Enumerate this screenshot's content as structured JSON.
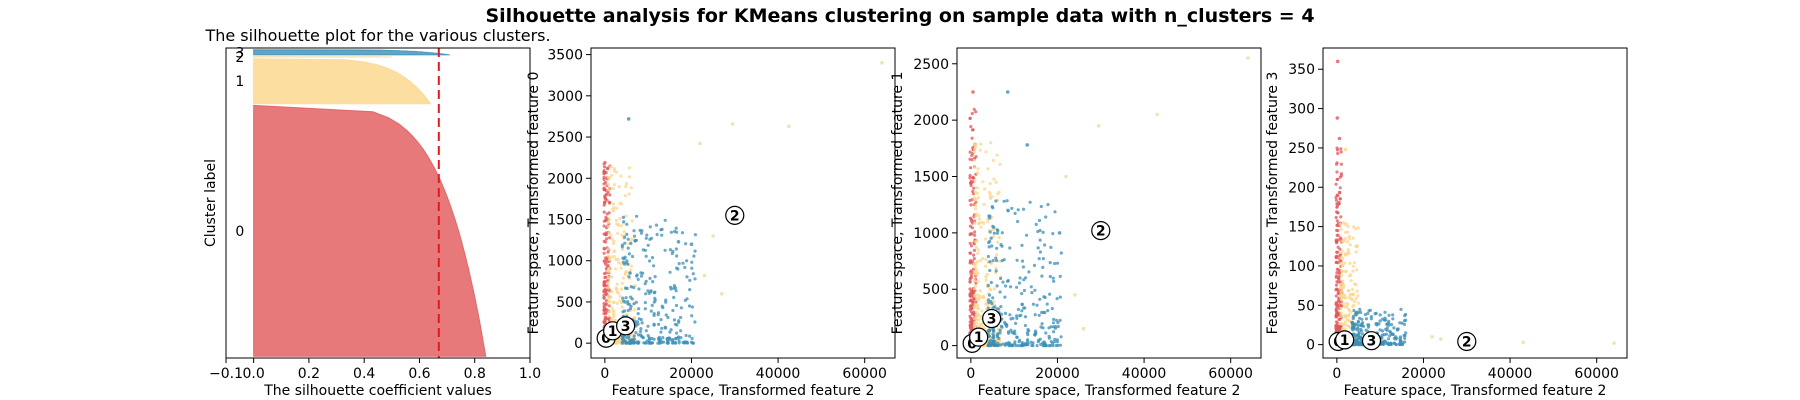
{
  "figure": {
    "suptitle": "Silhouette analysis for KMeans clustering on sample data with n_clusters = 4"
  },
  "colors": {
    "cluster_0": "#e15759",
    "cluster_1": "#fdd68a",
    "cluster_2": "#f0d9a0",
    "cluster_3": "#3a8fb7",
    "avg_line": "#e31a1c"
  },
  "chart_data": [
    {
      "type": "area",
      "title": "The silhouette plot for the various clusters.",
      "xlabel": "The silhouette coefficient values",
      "ylabel": "Cluster label",
      "xlim": [
        -0.1,
        1.0
      ],
      "xticks": [
        -0.1,
        0.0,
        0.2,
        0.4,
        0.6,
        0.8,
        1.0
      ],
      "xtick_labels": [
        "−0.1",
        "0.0",
        "0.2",
        "0.4",
        "0.6",
        "0.8",
        "1.0"
      ],
      "silhouette_avg": 0.67,
      "clusters": [
        {
          "label": "0",
          "size": 1450,
          "max": 0.84,
          "min": 0.0
        },
        {
          "label": "1",
          "size": 260,
          "max": 0.64,
          "min": 0.0
        },
        {
          "label": "2",
          "size": 2,
          "max": 0.5,
          "min": 0.0
        },
        {
          "label": "3",
          "size": 30,
          "max": 0.71,
          "min": 0.0
        }
      ]
    },
    {
      "type": "scatter",
      "xlabel": "Feature space, Transformed feature 2",
      "ylabel": "Feature space, Transformed feature 0",
      "xlim": [
        -3200,
        67000
      ],
      "ylim": [
        -180,
        3580
      ],
      "xticks": [
        0,
        20000,
        40000,
        60000
      ],
      "xtick_labels": [
        "0",
        "20000",
        "40000",
        "60000"
      ],
      "yticks": [
        0,
        500,
        1000,
        1500,
        2000,
        2500,
        3000,
        3500
      ],
      "ytick_labels": [
        "0",
        "500",
        "1000",
        "1500",
        "2000",
        "2500",
        "3000",
        "3500"
      ],
      "centers": [
        {
          "label": "0",
          "x": 300,
          "y": 60
        },
        {
          "label": "1",
          "x": 1800,
          "y": 150
        },
        {
          "label": "2",
          "x": 30000,
          "y": 1550
        },
        {
          "label": "3",
          "x": 4800,
          "y": 210
        }
      ],
      "outliers": [
        {
          "cluster": 2,
          "x": 64000,
          "y": 3400
        },
        {
          "cluster": 2,
          "x": 42500,
          "y": 2630
        },
        {
          "cluster": 2,
          "x": 29500,
          "y": 2660
        },
        {
          "cluster": 2,
          "x": 22000,
          "y": 2420
        },
        {
          "cluster": 2,
          "x": 25000,
          "y": 1300
        },
        {
          "cluster": 2,
          "x": 27000,
          "y": 600
        },
        {
          "cluster": 2,
          "x": 23000,
          "y": 820
        },
        {
          "cluster": 3,
          "x": 5500,
          "y": 2720
        },
        {
          "cluster": 3,
          "x": 17000,
          "y": 1230
        },
        {
          "cluster": 3,
          "x": 20000,
          "y": 1200
        }
      ],
      "clouds": [
        {
          "cluster": 0,
          "n": 260,
          "x": [
            -200,
            1200
          ],
          "ymax": 2200
        },
        {
          "cluster": 1,
          "n": 260,
          "x": [
            800,
            7000
          ],
          "ymax": 2150
        },
        {
          "cluster": 3,
          "n": 320,
          "x": [
            4000,
            21000
          ],
          "ymax": 1550
        }
      ]
    },
    {
      "type": "scatter",
      "xlabel": "Feature space, Transformed feature 2",
      "ylabel": "Feature space, Transformed feature 1",
      "xlim": [
        -3200,
        67000
      ],
      "ylim": [
        -110,
        2640
      ],
      "xticks": [
        0,
        20000,
        40000,
        60000
      ],
      "xtick_labels": [
        "0",
        "20000",
        "40000",
        "60000"
      ],
      "yticks": [
        0,
        500,
        1000,
        1500,
        2000,
        2500
      ],
      "ytick_labels": [
        "0",
        "500",
        "1000",
        "1500",
        "2000",
        "2500"
      ],
      "centers": [
        {
          "label": "0",
          "x": 300,
          "y": 20
        },
        {
          "label": "1",
          "x": 1800,
          "y": 75
        },
        {
          "label": "2",
          "x": 30000,
          "y": 1020
        },
        {
          "label": "3",
          "x": 4800,
          "y": 240
        }
      ],
      "outliers": [
        {
          "cluster": 2,
          "x": 64000,
          "y": 2550
        },
        {
          "cluster": 2,
          "x": 43000,
          "y": 2050
        },
        {
          "cluster": 2,
          "x": 29500,
          "y": 1950
        },
        {
          "cluster": 2,
          "x": 22000,
          "y": 1500
        },
        {
          "cluster": 2,
          "x": 24000,
          "y": 450
        },
        {
          "cluster": 2,
          "x": 26000,
          "y": 150
        },
        {
          "cluster": 3,
          "x": 8500,
          "y": 2250
        },
        {
          "cluster": 3,
          "x": 13000,
          "y": 1780
        },
        {
          "cluster": 3,
          "x": 20500,
          "y": 1000
        },
        {
          "cluster": 0,
          "x": 500,
          "y": 2250
        }
      ],
      "clouds": [
        {
          "cluster": 0,
          "n": 260,
          "x": [
            -200,
            1200
          ],
          "ymax": 2100
        },
        {
          "cluster": 1,
          "n": 260,
          "x": [
            800,
            7000
          ],
          "ymax": 1800
        },
        {
          "cluster": 3,
          "n": 320,
          "x": [
            4000,
            21000
          ],
          "ymax": 1300
        }
      ]
    },
    {
      "type": "scatter",
      "xlabel": "Feature space, Transformed feature 2",
      "ylabel": "Feature space, Transformed feature 3",
      "xlim": [
        -3200,
        67000
      ],
      "ylim": [
        -17,
        377
      ],
      "xticks": [
        0,
        20000,
        40000,
        60000
      ],
      "xtick_labels": [
        "0",
        "20000",
        "40000",
        "60000"
      ],
      "yticks": [
        0,
        50,
        100,
        150,
        200,
        250,
        300,
        350
      ],
      "ytick_labels": [
        "0",
        "50",
        "100",
        "150",
        "200",
        "250",
        "300",
        "350"
      ],
      "centers": [
        {
          "label": "0",
          "x": 300,
          "y": 4
        },
        {
          "label": "1",
          "x": 1800,
          "y": 6
        },
        {
          "label": "2",
          "x": 30000,
          "y": 4
        },
        {
          "label": "3",
          "x": 8000,
          "y": 5
        }
      ],
      "outliers": [
        {
          "cluster": 0,
          "x": 200,
          "y": 360
        },
        {
          "cluster": 0,
          "x": 100,
          "y": 288
        },
        {
          "cluster": 0,
          "x": 600,
          "y": 262
        },
        {
          "cluster": 2,
          "x": 64000,
          "y": 2
        },
        {
          "cluster": 2,
          "x": 43000,
          "y": 3
        },
        {
          "cluster": 2,
          "x": 22000,
          "y": 10
        },
        {
          "cluster": 2,
          "x": 24000,
          "y": 7
        },
        {
          "cluster": 1,
          "x": 2000,
          "y": 248
        }
      ],
      "clouds": [
        {
          "cluster": 0,
          "n": 240,
          "x": [
            -200,
            1200
          ],
          "ymax": 250
        },
        {
          "cluster": 1,
          "n": 220,
          "x": [
            800,
            5000
          ],
          "ymax": 160
        },
        {
          "cluster": 3,
          "n": 260,
          "x": [
            3500,
            16000
          ],
          "ymax": 45
        }
      ]
    }
  ]
}
